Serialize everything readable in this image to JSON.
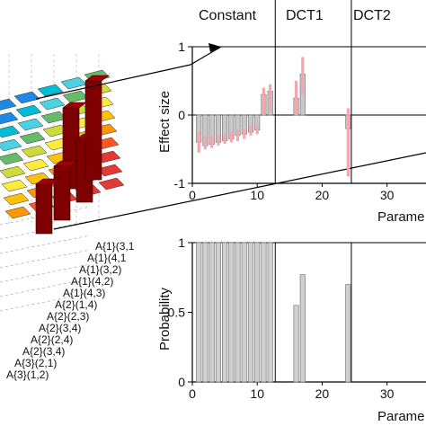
{
  "segments": [
    "Constant",
    "DCT1",
    "DCT2"
  ],
  "matrix_row_labels": [
    "A{1}(3,1",
    "A{1}(4,1",
    "A{1}(3,2)",
    "A{1}(4,2)",
    "A{1}(4,3)",
    "A{2}(1,4)",
    "A{2}(2,3)",
    "A{2}(3,4)",
    "A{2}(2,4)",
    "A{2}(3,4)",
    "A{3}(2,1)",
    "A{3}(1,2)"
  ],
  "colors": {
    "effect_bar_fill": "#c8c8c8",
    "effect_bar_stroke": "#7a7a7a",
    "error_bar": "#f4a6ae",
    "prob_bar_fill": "#cfcfcf",
    "matrix_dark_red": "#7f0000"
  },
  "chart_data": [
    {
      "type": "bar",
      "ylabel": "Effect size",
      "xlabel": "Parame",
      "xlim": [
        0,
        36
      ],
      "ylim": [
        -1,
        1
      ],
      "xticks": [
        0,
        10,
        20,
        30
      ],
      "yticks": [
        -1,
        0,
        1
      ],
      "x": [
        1,
        2,
        3,
        4,
        5,
        6,
        7,
        8,
        9,
        10,
        11,
        12,
        16,
        17,
        24
      ],
      "values": [
        -0.4,
        -0.45,
        -0.43,
        -0.4,
        -0.38,
        -0.35,
        -0.3,
        -0.28,
        -0.25,
        -0.22,
        0.3,
        0.35,
        0.25,
        0.6,
        -0.2
      ],
      "error_low": [
        -0.55,
        -0.5,
        -0.48,
        -0.45,
        -0.42,
        -0.4,
        -0.38,
        -0.35,
        -0.3,
        -0.28,
        0,
        0.05,
        0,
        0.3,
        -0.9
      ],
      "error_high": [
        -0.25,
        -0.3,
        -0.3,
        -0.28,
        -0.28,
        -0.25,
        -0.2,
        -0.2,
        -0.15,
        -0.15,
        0.4,
        0.45,
        0.5,
        0.85,
        0.1
      ]
    },
    {
      "type": "bar",
      "ylabel": "Probability",
      "xlabel": "Parame",
      "xlim": [
        0,
        36
      ],
      "ylim": [
        0,
        1
      ],
      "xticks": [
        0,
        10,
        20,
        30
      ],
      "yticks": [
        0,
        0.5,
        1
      ],
      "x": [
        1,
        2,
        3,
        4,
        5,
        6,
        7,
        8,
        9,
        10,
        11,
        12,
        16,
        17,
        24
      ],
      "values": [
        1,
        1,
        1,
        1,
        1,
        1,
        1,
        1,
        1,
        1,
        1,
        1,
        0.55,
        0.77,
        0.7
      ]
    }
  ]
}
